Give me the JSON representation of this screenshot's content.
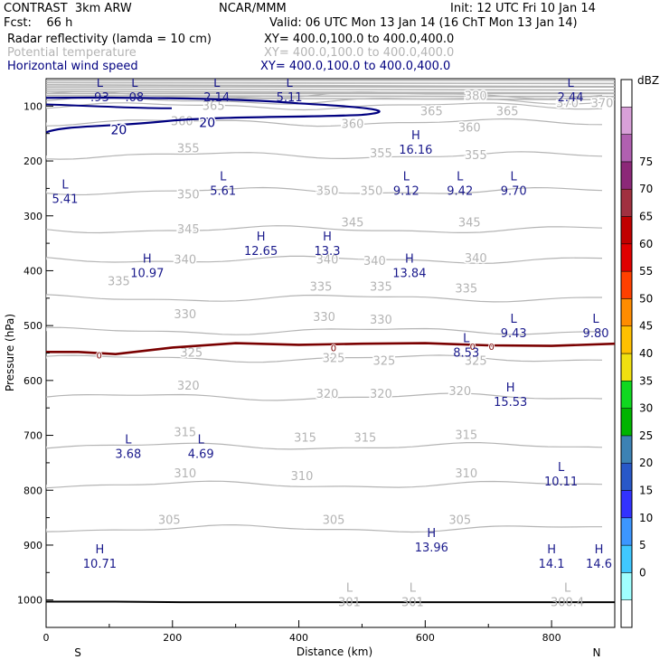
{
  "header": {
    "model": "CONTRAST  3km ARW",
    "fcst": "Fcst:    66 h",
    "center": "NCAR/MMM",
    "init": "Init: 12 UTC Fri 10 Jan 14",
    "valid": "Valid: 06 UTC Mon 13 Jan 14 (16 ChT Mon 13 Jan 14)",
    "line1": "Radar reflectivity (lamda = 10 cm)",
    "line1_xy": "XY= 400.0,100.0 to 400.0,400.0",
    "line2": "Potential temperature",
    "line2_xy": "XY= 400.0,100.0 to 400.0,400.0",
    "line3": "Horizontal wind speed",
    "line3_xy": "XY= 400.0,100.0 to 400.0,400.0"
  },
  "colors": {
    "theta": "#b4b4b4",
    "wind": "#000080",
    "zero_line": "#7a0000",
    "labels": "#1a1a8c"
  },
  "chart_data": {
    "type": "cross-section",
    "xlabel": "Distance (km)",
    "ylabel": "Pressure (hPa)",
    "xlim": [
      0,
      900
    ],
    "ylim": [
      1050,
      50
    ],
    "x_ticks": [
      0,
      200,
      400,
      600,
      800
    ],
    "y_ticks": [
      100,
      200,
      300,
      400,
      500,
      600,
      700,
      800,
      900,
      1000
    ],
    "x_end_labels": {
      "left": "S",
      "right": "N"
    },
    "theta_levels": [
      {
        "value": "305",
        "p": 870,
        "labels": [
          [
            195,
            855
          ],
          [
            455,
            855
          ],
          [
            655,
            855
          ]
        ]
      },
      {
        "value": "310",
        "p": 790,
        "labels": [
          [
            220,
            770
          ],
          [
            405,
            775
          ],
          [
            665,
            770
          ]
        ]
      },
      {
        "value": "315",
        "p": 720,
        "labels": [
          [
            220,
            695
          ],
          [
            410,
            705
          ],
          [
            505,
            705
          ],
          [
            665,
            700
          ]
        ]
      },
      {
        "value": "320",
        "p": 630,
        "labels": [
          [
            225,
            610
          ],
          [
            445,
            625
          ],
          [
            530,
            625
          ],
          [
            655,
            620
          ]
        ]
      },
      {
        "value": "325",
        "p": 560,
        "labels": [
          [
            230,
            550
          ],
          [
            455,
            560
          ],
          [
            535,
            565
          ],
          [
            680,
            565
          ]
        ]
      },
      {
        "value": "330",
        "p": 510,
        "labels": [
          [
            220,
            480
          ],
          [
            440,
            485
          ],
          [
            530,
            490
          ]
        ]
      },
      {
        "value": "335",
        "p": 450,
        "labels": [
          [
            115,
            420
          ],
          [
            435,
            430
          ],
          [
            530,
            430
          ],
          [
            665,
            433
          ]
        ]
      },
      {
        "value": "340",
        "p": 380,
        "labels": [
          [
            220,
            380
          ],
          [
            445,
            380
          ],
          [
            520,
            383
          ],
          [
            680,
            378
          ]
        ]
      },
      {
        "value": "345",
        "p": 325,
        "labels": [
          [
            225,
            325
          ],
          [
            485,
            313
          ],
          [
            670,
            313
          ]
        ]
      },
      {
        "value": "350",
        "p": 255,
        "labels": [
          [
            225,
            262
          ],
          [
            445,
            255
          ],
          [
            515,
            255
          ]
        ]
      },
      {
        "value": "355",
        "p": 190,
        "labels": [
          [
            225,
            178
          ],
          [
            530,
            187
          ],
          [
            680,
            190
          ]
        ]
      },
      {
        "value": "360",
        "p": 130,
        "labels": [
          [
            215,
            128
          ],
          [
            485,
            133
          ],
          [
            670,
            140
          ]
        ]
      },
      {
        "value": "365",
        "p": 100,
        "labels": [
          [
            265,
            100
          ],
          [
            610,
            110
          ],
          [
            730,
            110
          ]
        ]
      },
      {
        "value": "370",
        "p": 90,
        "labels": [
          [
            825,
            95
          ],
          [
            880,
            95
          ]
        ]
      },
      {
        "value": "380",
        "p": 80,
        "labels": [
          [
            680,
            82
          ]
        ]
      }
    ],
    "wind_contours": [
      {
        "value": "20",
        "label_positions": [
          [
            115,
            143
          ],
          [
            255,
            130
          ]
        ]
      }
    ],
    "zero_reflectivity_contour": {
      "value": "0",
      "label_positions": [
        [
          84,
          553
        ],
        [
          455,
          540
        ],
        [
          675,
          538
        ],
        [
          705,
          538
        ]
      ]
    },
    "extrema": [
      {
        "kind": "L",
        "value": ".93",
        "x": 85,
        "p": 65
      },
      {
        "kind": "L",
        "value": ".08",
        "x": 140,
        "p": 65
      },
      {
        "kind": "L",
        "value": "2.14",
        "x": 270,
        "p": 65
      },
      {
        "kind": "L",
        "value": "5.11",
        "x": 385,
        "p": 65
      },
      {
        "kind": "L",
        "value": "2.44",
        "x": 830,
        "p": 65
      },
      {
        "kind": "H",
        "value": "16.16",
        "x": 585,
        "p": 160
      },
      {
        "kind": "L",
        "value": "5.41",
        "x": 30,
        "p": 250
      },
      {
        "kind": "L",
        "value": "5.61",
        "x": 280,
        "p": 235
      },
      {
        "kind": "L",
        "value": "9.12",
        "x": 570,
        "p": 235
      },
      {
        "kind": "L",
        "value": "9.42",
        "x": 655,
        "p": 235
      },
      {
        "kind": "L",
        "value": "9.70",
        "x": 740,
        "p": 235
      },
      {
        "kind": "H",
        "value": "12.65",
        "x": 340,
        "p": 345
      },
      {
        "kind": "H",
        "value": "13.3",
        "x": 445,
        "p": 345
      },
      {
        "kind": "H",
        "value": "10.97",
        "x": 160,
        "p": 385
      },
      {
        "kind": "H",
        "value": "13.84",
        "x": 575,
        "p": 385
      },
      {
        "kind": "L",
        "value": "9.43",
        "x": 740,
        "p": 495
      },
      {
        "kind": "L",
        "value": "9.80",
        "x": 870,
        "p": 495
      },
      {
        "kind": "L",
        "value": "8.53",
        "x": 665,
        "p": 530
      },
      {
        "kind": "H",
        "value": "15.53",
        "x": 735,
        "p": 620
      },
      {
        "kind": "L",
        "value": "3.68",
        "x": 130,
        "p": 715
      },
      {
        "kind": "L",
        "value": "4.69",
        "x": 245,
        "p": 715
      },
      {
        "kind": "L",
        "value": "10.11",
        "x": 815,
        "p": 765
      },
      {
        "kind": "H",
        "value": "13.96",
        "x": 610,
        "p": 885
      },
      {
        "kind": "H",
        "value": "10.71",
        "x": 85,
        "p": 915
      },
      {
        "kind": "H",
        "value": "14.1",
        "x": 800,
        "p": 915
      },
      {
        "kind": "H",
        "value": "14.6",
        "x": 875,
        "p": 915
      }
    ],
    "theta_extrema": [
      {
        "kind": "L",
        "value": "301",
        "x": 480,
        "p": 985
      },
      {
        "kind": "L",
        "value": "301",
        "x": 580,
        "p": 985
      },
      {
        "kind": "L",
        "value": "300.4",
        "x": 825,
        "p": 985
      }
    ],
    "colorbar": {
      "unit": "dBZ",
      "levels": [
        "0",
        "5",
        "10",
        "15",
        "20",
        "25",
        "30",
        "35",
        "40",
        "45",
        "50",
        "55",
        "60",
        "65",
        "70",
        "75"
      ],
      "colors": [
        "#ffffff",
        "#a0ffff",
        "#40c8ff",
        "#3c96ff",
        "#3232ff",
        "#2858c8",
        "#3c82b4",
        "#00b400",
        "#10d820",
        "#f0e010",
        "#ffc000",
        "#ff8c00",
        "#ff4000",
        "#e00000",
        "#c00000",
        "#a03040",
        "#8c2878",
        "#b060b0",
        "#d8a0d8",
        "#ffffff"
      ]
    }
  }
}
